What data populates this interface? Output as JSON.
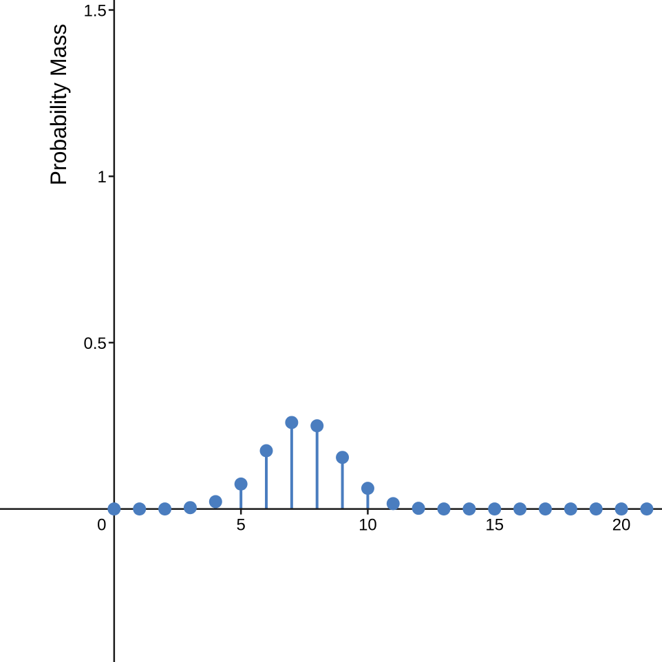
{
  "chart_data": {
    "type": "scatter",
    "subtype": "stem",
    "title": "",
    "xlabel": "",
    "ylabel": "Probability Mass",
    "xlim": [
      -4.5,
      21.6
    ],
    "ylim": [
      -0.46,
      1.53
    ],
    "x_ticks": [
      0,
      5,
      10,
      15,
      20
    ],
    "x_tick_labels": [
      "0",
      "5",
      "10",
      "15",
      "20"
    ],
    "y_ticks": [
      0.5,
      1,
      1.5
    ],
    "y_tick_labels": [
      "0.5",
      "1",
      "1.5"
    ],
    "grid": false,
    "legend": "none",
    "color": "#4a7dbf",
    "series": [
      {
        "x": [
          0,
          1,
          2,
          3,
          4,
          5,
          6,
          7,
          8,
          9,
          10,
          11,
          12,
          13,
          14,
          15,
          16,
          17,
          18,
          19,
          20,
          21
        ],
        "y": [
          0.0,
          0.0,
          0.0,
          0.004,
          0.022,
          0.075,
          0.175,
          0.26,
          0.25,
          0.155,
          0.062,
          0.016,
          0.002,
          0.0,
          0.0,
          0.0,
          0.0,
          0.0,
          0.0,
          0.0,
          0.0,
          0.0
        ]
      }
    ]
  }
}
